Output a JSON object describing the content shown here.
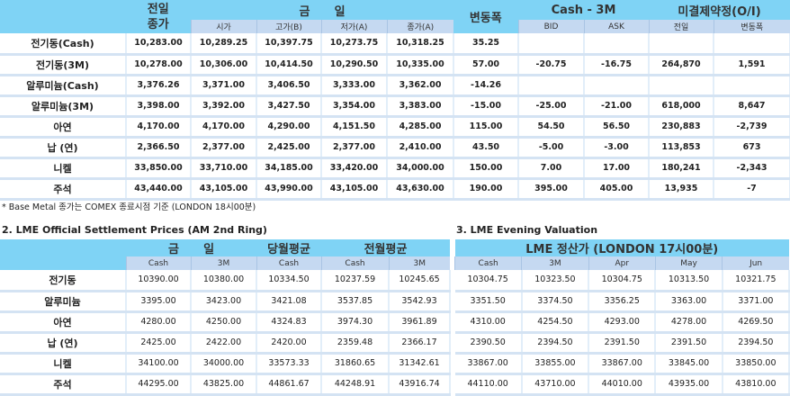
{
  "table1": {
    "headers": {
      "prev_close": "전일\n종가",
      "today": "금      일",
      "change": "변동폭",
      "cash3m": "Cash - 3M",
      "oi": "미결제약정(O/I)",
      "sub": [
        "시가",
        "고가(B)",
        "저가(A)",
        "종가(A)"
      ],
      "sub_cash3m": [
        "BID",
        "ASK"
      ],
      "sub_oi": [
        "전일",
        "변동폭"
      ]
    },
    "rows": [
      [
        "전기동(Cash)",
        "10,283.00",
        "10,289.25",
        "10,397.75",
        "10,273.75",
        "10,318.25",
        "35.25",
        "",
        "",
        "",
        ""
      ],
      [
        "전기동(3M)",
        "10,278.00",
        "10,306.00",
        "10,414.50",
        "10,290.50",
        "10,335.00",
        "57.00",
        "-20.75",
        "-16.75",
        "264,870",
        "1,591"
      ],
      [
        "알루미늄(Cash)",
        "3,376.26",
        "3,371.00",
        "3,406.50",
        "3,333.00",
        "3,362.00",
        "-14.26",
        "",
        "",
        "",
        ""
      ],
      [
        "알루미늄(3M)",
        "3,398.00",
        "3,392.00",
        "3,427.50",
        "3,354.00",
        "3,383.00",
        "-15.00",
        "-25.00",
        "-21.00",
        "618,000",
        "8,647"
      ],
      [
        "아연",
        "4,170.00",
        "4,170.00",
        "4,290.00",
        "4,151.50",
        "4,285.00",
        "115.00",
        "54.50",
        "56.50",
        "230,883",
        "-2,739"
      ],
      [
        "납 (연)",
        "2,366.50",
        "2,377.00",
        "2,425.00",
        "2,377.00",
        "2,410.00",
        "43.50",
        "-5.00",
        "-3.00",
        "113,853",
        "673"
      ],
      [
        "니켈",
        "33,850.00",
        "33,710.00",
        "34,185.00",
        "33,420.00",
        "34,000.00",
        "150.00",
        "7.00",
        "17.00",
        "180,241",
        "-2,343"
      ],
      [
        "주석",
        "43,440.00",
        "43,105.00",
        "43,990.00",
        "43,105.00",
        "43,630.00",
        "190.00",
        "395.00",
        "405.00",
        "13,935",
        "-7"
      ]
    ],
    "note": "* Base Metal 종가는 COMEX 종료시점 기준 (LONDON 18시00분)"
  },
  "table2": {
    "title": "2. LME Official Settlement Prices (AM 2nd Ring)",
    "groups": [
      "금      일",
      "당월평균",
      "전월평균"
    ],
    "sub": [
      "Cash",
      "3M",
      "Cash",
      "Cash",
      "3M"
    ],
    "rows": [
      [
        "전기동",
        "10390.00",
        "10380.00",
        "10334.50",
        "10237.59",
        "10245.65"
      ],
      [
        "알루미늄",
        "3395.00",
        "3423.00",
        "3421.08",
        "3537.85",
        "3542.93"
      ],
      [
        "아연",
        "4280.00",
        "4250.00",
        "4324.83",
        "3974.30",
        "3961.89"
      ],
      [
        "납 (연)",
        "2425.00",
        "2422.00",
        "2420.00",
        "2359.48",
        "2366.17"
      ],
      [
        "니켈",
        "34100.00",
        "34000.00",
        "33573.33",
        "31860.65",
        "31342.61"
      ],
      [
        "주석",
        "44295.00",
        "43825.00",
        "44861.67",
        "44248.91",
        "43916.74"
      ]
    ]
  },
  "table3": {
    "title": "3. LME Evening Valuation",
    "group": "LME 정산가 (LONDON 17시00분)",
    "sub": [
      "Cash",
      "3M",
      "Apr",
      "May",
      "Jun"
    ],
    "rows": [
      [
        "10304.75",
        "10323.50",
        "10304.75",
        "10313.50",
        "10321.75"
      ],
      [
        "3351.50",
        "3374.50",
        "3356.25",
        "3363.00",
        "3371.00"
      ],
      [
        "4310.00",
        "4254.50",
        "4293.00",
        "4278.00",
        "4269.50"
      ],
      [
        "2390.50",
        "2394.50",
        "2391.50",
        "2391.50",
        "2394.50"
      ],
      [
        "33867.00",
        "33855.00",
        "33867.00",
        "33845.00",
        "33850.00"
      ],
      [
        "44110.00",
        "43710.00",
        "44010.00",
        "43935.00",
        "43810.00"
      ]
    ]
  },
  "colors": {
    "header": "#7fd3f5",
    "subheader": "#c5d9f1"
  }
}
